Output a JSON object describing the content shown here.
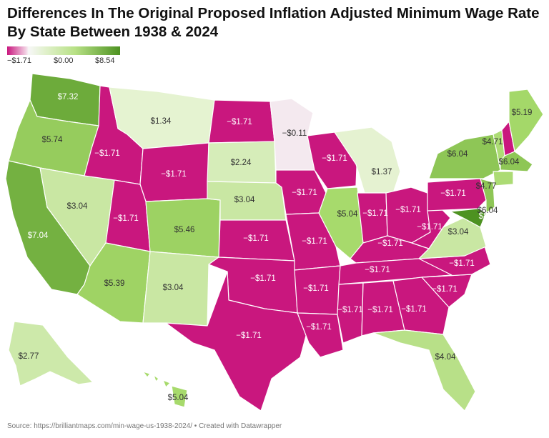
{
  "title": "Differences In The Original Proposed Inflation Adjusted Minimum Wage Rate By State Between 1938 & 2024",
  "legend": {
    "min_label": "−$1.71",
    "mid_label": "$0.00",
    "max_label": "$8.54",
    "min_color": "#c9177e",
    "mid_color": "#f7f7f7",
    "max_color": "#4d9221"
  },
  "source": "Source: https://brilliantmaps.com/min-wage-us-1938-2024/ • Created with Datawrapper",
  "states": {
    "WA": "$7.32",
    "OR": "$5.74",
    "CA": "$7.04",
    "NV": "$3.04",
    "ID": "−$1.71",
    "MT": "$1.34",
    "WY": "−$1.71",
    "UT": "−$1.71",
    "AZ": "$5.39",
    "CO": "$5.46",
    "NM": "$3.04",
    "ND": "−$1.71",
    "SD": "$2.24",
    "NE": "$3.04",
    "KS": "−$1.71",
    "OK": "−$1.71",
    "TX": "−$1.71",
    "MN": "−$0.11",
    "IA": "−$1.71",
    "MO": "−$1.71",
    "AR": "−$1.71",
    "LA": "−$1.71",
    "WI": "−$1.71",
    "IL": "$5.04",
    "MI": "$1.37",
    "IN": "−$1.71",
    "OH": "−$1.71",
    "KY": "−$1.71",
    "TN": "−$1.71",
    "MS": "−$1.71",
    "AL": "−$1.71",
    "GA": "−$1.71",
    "FL": "$4.04",
    "SC": "−$1.71",
    "NC": "−$1.71",
    "VA": "$3.04",
    "WV": "−$1.71",
    "PA": "−$1.71",
    "NY": "$6.04",
    "VT": "$4.71",
    "NH": "−$1.71",
    "ME": "$5.19",
    "MA": "$6.04",
    "CT": "$4.77",
    "NJ": "$6.04",
    "MD": "$8.54",
    "AK": "$2.77",
    "HI": "$5.04"
  }
}
